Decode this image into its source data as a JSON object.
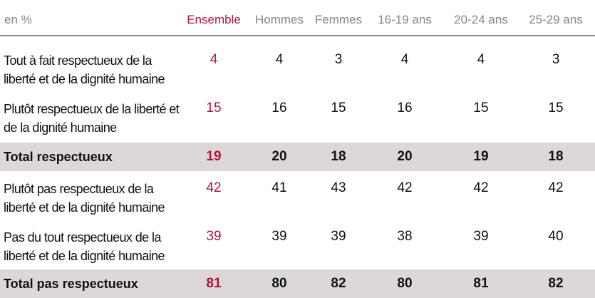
{
  "header": {
    "unit": "en %",
    "columns": [
      "Ensemble",
      "Hommes",
      "Femmes",
      "16-19 ans",
      "20-24 ans",
      "25-29 ans"
    ]
  },
  "rows": [
    {
      "label": "Tout à fait respectueux de la liberté et de la dignité humaine",
      "values": [
        "4",
        "4",
        "3",
        "4",
        "4",
        "3"
      ],
      "total": false
    },
    {
      "label": "Plutôt respectueux de la liberté et de la dignité humaine",
      "values": [
        "15",
        "16",
        "15",
        "16",
        "15",
        "15"
      ],
      "total": false
    },
    {
      "label": "Total respectueux",
      "values": [
        "19",
        "20",
        "18",
        "20",
        "19",
        "18"
      ],
      "total": true
    },
    {
      "label": "Plutôt pas respectueux de la liberté et de la dignité humaine",
      "values": [
        "42",
        "41",
        "43",
        "42",
        "42",
        "42"
      ],
      "total": false
    },
    {
      "label": "Pas du tout respectueux de la liberté et de la dignité humaine",
      "values": [
        "39",
        "39",
        "39",
        "38",
        "39",
        "40"
      ],
      "total": false
    },
    {
      "label": "Total pas respectueux",
      "values": [
        "81",
        "80",
        "82",
        "80",
        "81",
        "82"
      ],
      "total": true
    }
  ],
  "colors": {
    "accent": "#b3123e",
    "band": "#dcd8d8"
  }
}
